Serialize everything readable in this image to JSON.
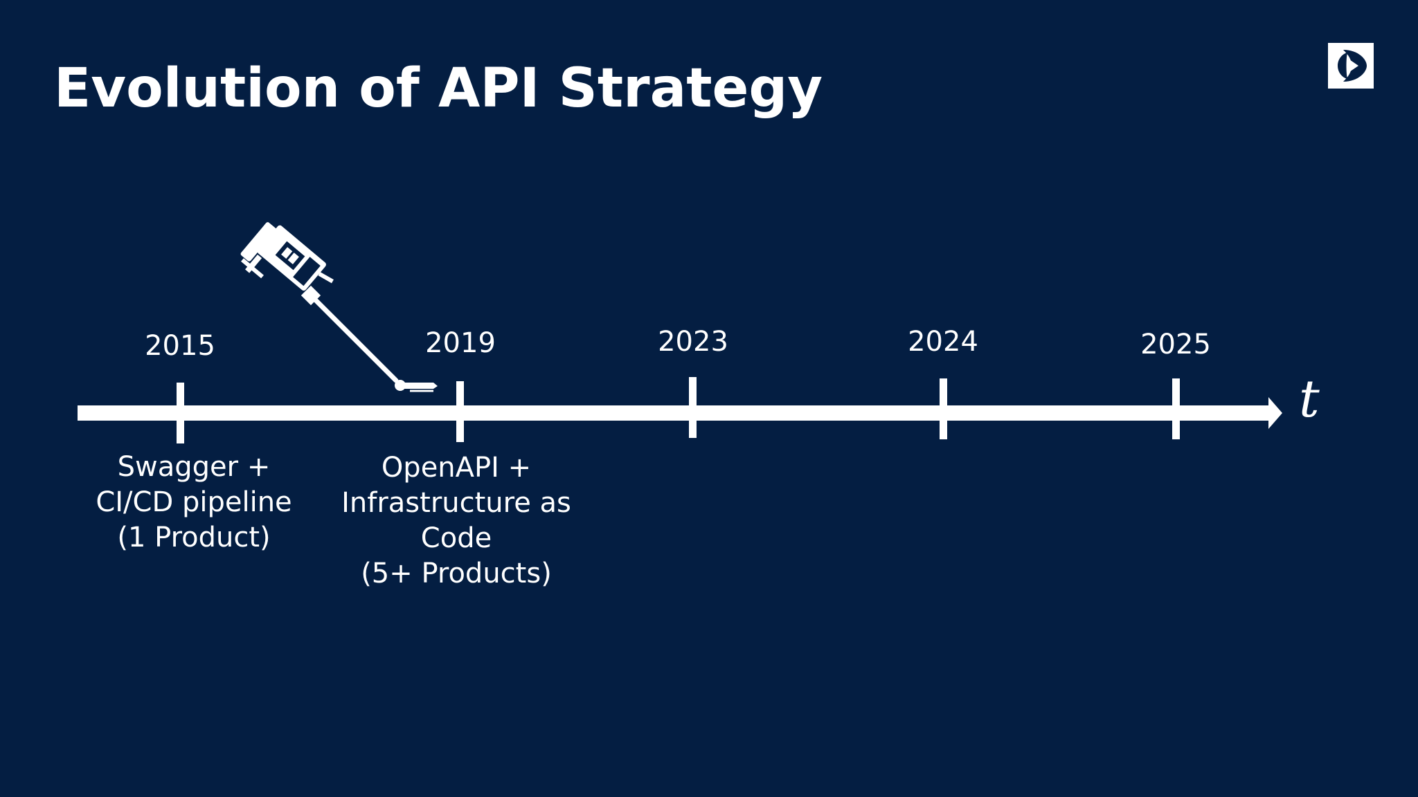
{
  "slide": {
    "title": "Evolution of API Strategy",
    "logo_icon": "electrolux-logo-icon",
    "background_color": "#041e42",
    "foreground_color": "#ffffff"
  },
  "timeline": {
    "axis_label": "t",
    "milestones": [
      {
        "year": "2015",
        "description": [
          "Swagger +",
          "CI/CD pipeline",
          "(1 Product)"
        ]
      },
      {
        "year": "2019",
        "description": [
          "OpenAPI +",
          "Infrastructure as",
          "Code",
          "(5+ Products)"
        ]
      },
      {
        "year": "2023",
        "description": []
      },
      {
        "year": "2024",
        "description": []
      },
      {
        "year": "2025",
        "description": []
      }
    ],
    "marker_icon": "stick-vacuum-cleaner-icon"
  }
}
